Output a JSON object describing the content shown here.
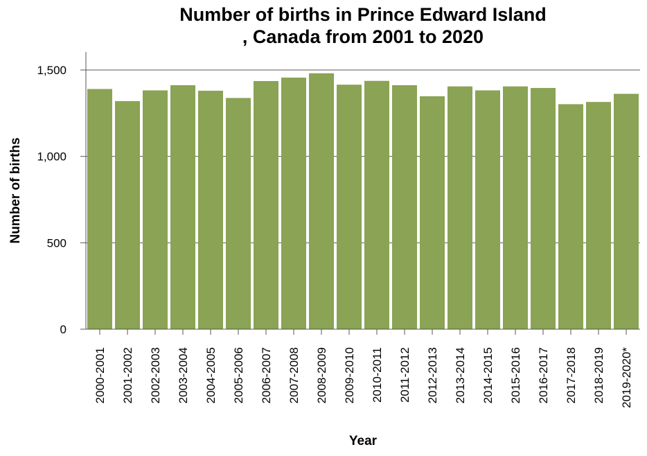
{
  "chart_data": {
    "type": "bar",
    "title_lines": [
      "Number of births in Prince Edward Island",
      ", Canada from 2001 to 2020"
    ],
    "xlabel": "Year",
    "ylabel": "Number of births",
    "categories": [
      "2000-2001",
      "2001-2002",
      "2002-2003",
      "2003-2004",
      "2004-2005",
      "2005-2006",
      "2006-2007",
      "2007-2008",
      "2008-2009",
      "2009-2010",
      "2010-2011",
      "2011-2012",
      "2012-2013",
      "2013-2014",
      "2014-2015",
      "2015-2016",
      "2016-2017",
      "2017-2018",
      "2018-2019",
      "2019-2020*"
    ],
    "values": [
      1390,
      1320,
      1382,
      1412,
      1380,
      1338,
      1436,
      1456,
      1481,
      1415,
      1437,
      1412,
      1348,
      1405,
      1382,
      1405,
      1396,
      1302,
      1315,
      1362
    ],
    "ylim": [
      0,
      1500
    ],
    "yticks": [
      0,
      500,
      1000,
      1500
    ],
    "ytick_labels": [
      "0",
      "500",
      "1,000",
      "1,500"
    ],
    "grid": "horizontal",
    "legend": "none",
    "colors": {
      "bar": "#8aa354",
      "grid": "#555555",
      "axis": "#555555"
    }
  }
}
